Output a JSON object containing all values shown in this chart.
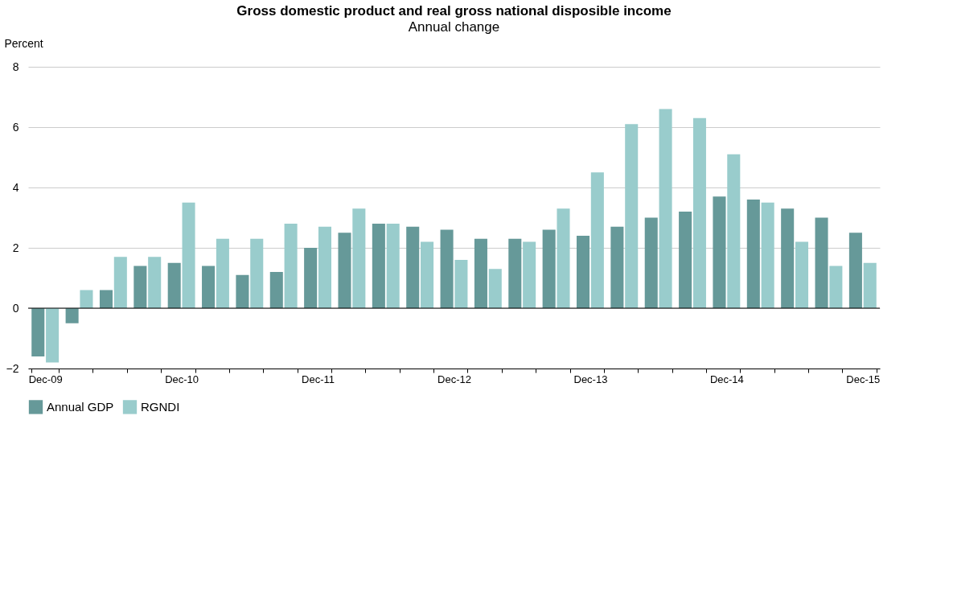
{
  "chart_data": {
    "type": "bar",
    "title": "Gross domestic product and real gross national disposible income",
    "subtitle": "Annual change",
    "ylabel": "Percent",
    "categories": [
      "Dec-09",
      null,
      null,
      null,
      "Dec-10",
      null,
      null,
      null,
      "Dec-11",
      null,
      null,
      null,
      "Dec-12",
      null,
      null,
      null,
      "Dec-13",
      null,
      null,
      null,
      "Dec-14",
      null,
      null,
      null,
      "Dec-15"
    ],
    "series": [
      {
        "name": "Annual GDP",
        "color": "#669999",
        "values": [
          -1.6,
          -0.5,
          0.6,
          1.4,
          1.5,
          1.4,
          1.1,
          1.2,
          2.0,
          2.5,
          2.8,
          2.7,
          2.6,
          2.3,
          2.3,
          2.6,
          2.4,
          2.7,
          3.0,
          3.2,
          3.7,
          3.6,
          3.3,
          3.0,
          2.5
        ]
      },
      {
        "name": "RGNDI",
        "color": "#99cccc",
        "values": [
          -1.8,
          0.6,
          1.7,
          1.7,
          3.5,
          2.3,
          2.3,
          2.8,
          2.7,
          3.3,
          2.8,
          2.2,
          1.6,
          1.3,
          2.2,
          3.3,
          4.5,
          6.1,
          6.6,
          6.3,
          5.1,
          3.5,
          2.2,
          1.4,
          1.5
        ]
      }
    ],
    "ylim": [
      -2,
      8
    ],
    "yticks": [
      -2,
      0,
      2,
      4,
      6,
      8
    ],
    "grid": "y",
    "legend": "bottom"
  }
}
